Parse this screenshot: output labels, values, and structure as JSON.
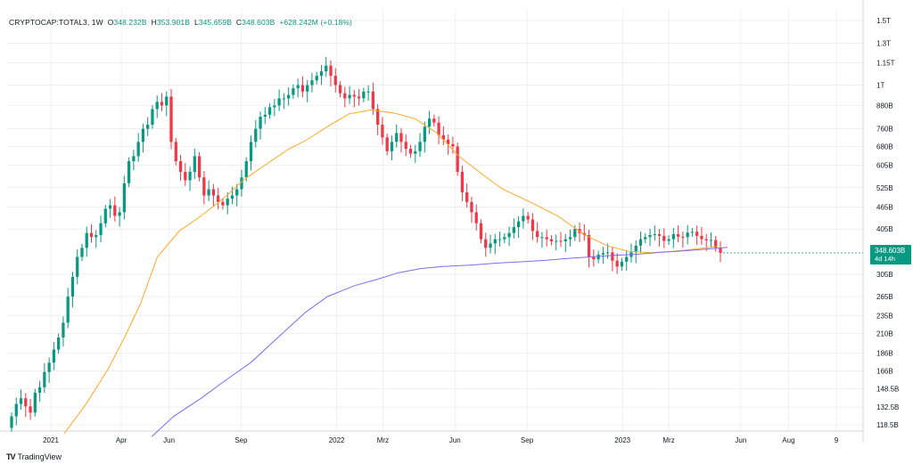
{
  "header": {
    "symbol_label": "CRYPTOCAP:TOTAL3, 1W",
    "open_key": "O",
    "open_value": "348.232B",
    "high_key": "H",
    "high_value": "353.901B",
    "low_key": "L",
    "low_value": "345.659B",
    "close_key": "C",
    "close_value": "348.603B",
    "change_value": "+628.242M (+0.18%)"
  },
  "price_tag": {
    "value": "348.603B",
    "countdown": "4d 14h"
  },
  "branding": {
    "logo": "TV",
    "name": "TradingView"
  },
  "colors": {
    "up": "#089981",
    "down": "#f23645",
    "ma_short": "#ffa726",
    "ma_long": "#7e6bf0",
    "grid": "#e6e6e6",
    "axis_text": "#131722"
  },
  "chart_data": {
    "type": "candlestick",
    "y_scale": "log",
    "y_ticks": [
      "1.5T",
      "1.3T",
      "1.15T",
      "1T",
      "880B",
      "760B",
      "680B",
      "605B",
      "525B",
      "465B",
      "405B",
      "348.603B",
      "305B",
      "265B",
      "235B",
      "210B",
      "186B",
      "166B",
      "148.5B",
      "132.5B",
      "118.5B"
    ],
    "y_tick_values": [
      1500,
      1300,
      1150,
      1000,
      880,
      760,
      680,
      605,
      525,
      465,
      405,
      348.603,
      305,
      265,
      235,
      210,
      186,
      166,
      148.5,
      132.5,
      118.5
    ],
    "x_ticks": [
      {
        "label": "2021",
        "date": "2021-01-01"
      },
      {
        "label": "Apr",
        "date": "2021-04-01"
      },
      {
        "label": "Jun",
        "date": "2021-06-01"
      },
      {
        "label": "Sep",
        "date": "2021-09-01"
      },
      {
        "label": "2022",
        "date": "2022-01-01"
      },
      {
        "label": "Mrz",
        "date": "2022-03-01"
      },
      {
        "label": "Jun",
        "date": "2022-06-01"
      },
      {
        "label": "Sep",
        "date": "2022-09-01"
      },
      {
        "label": "2023",
        "date": "2023-01-01"
      },
      {
        "label": "Mrz",
        "date": "2023-03-01"
      },
      {
        "label": "Jun",
        "date": "2023-06-01"
      },
      {
        "label": "Aug",
        "date": "2023-08-01"
      },
      {
        "label": "9",
        "date": "2023-10-01"
      }
    ],
    "candle_closes": [
      125,
      135,
      140,
      133,
      128,
      145,
      150,
      165,
      175,
      190,
      205,
      225,
      265,
      300,
      340,
      360,
      395,
      385,
      390,
      420,
      460,
      470,
      440,
      450,
      540,
      620,
      640,
      700,
      760,
      780,
      860,
      900,
      880,
      930,
      700,
      620,
      580,
      550,
      580,
      640,
      560,
      500,
      520,
      500,
      480,
      470,
      490,
      500,
      520,
      560,
      620,
      700,
      760,
      820,
      830,
      870,
      880,
      920,
      920,
      940,
      980,
      1000,
      960,
      1000,
      1030,
      1060,
      1090,
      1130,
      1060,
      1000,
      950,
      920,
      940,
      930,
      920,
      960,
      960,
      860,
      780,
      720,
      660,
      700,
      740,
      700,
      670,
      650,
      660,
      700,
      770,
      810,
      790,
      730,
      710,
      690,
      680,
      580,
      510,
      480,
      450,
      420,
      380,
      360,
      370,
      380,
      380,
      385,
      395,
      410,
      425,
      440,
      430,
      400,
      385,
      385,
      380,
      375,
      376,
      375,
      380,
      385,
      405,
      395,
      390,
      340,
      335,
      345,
      348,
      350,
      332,
      320,
      330,
      340,
      350,
      365,
      380,
      385,
      390,
      392,
      388,
      376,
      380,
      392,
      386,
      385,
      396,
      398,
      388,
      380,
      377,
      378,
      360,
      348.603
    ],
    "sma_short": [
      [
        "2021-01-18",
        112
      ],
      [
        "2021-02-15",
        135
      ],
      [
        "2021-03-15",
        168
      ],
      [
        "2021-04-05",
        205
      ],
      [
        "2021-04-26",
        255
      ],
      [
        "2021-05-17",
        340
      ],
      [
        "2021-06-14",
        400
      ],
      [
        "2021-07-12",
        440
      ],
      [
        "2021-08-09",
        490
      ],
      [
        "2021-09-06",
        555
      ],
      [
        "2021-10-04",
        610
      ],
      [
        "2021-11-01",
        670
      ],
      [
        "2021-11-22",
        705
      ],
      [
        "2021-12-20",
        770
      ],
      [
        "2022-01-17",
        835
      ],
      [
        "2022-02-14",
        855
      ],
      [
        "2022-03-14",
        840
      ],
      [
        "2022-04-11",
        810
      ],
      [
        "2022-05-09",
        740
      ],
      [
        "2022-06-06",
        640
      ],
      [
        "2022-07-04",
        575
      ],
      [
        "2022-08-01",
        520
      ],
      [
        "2022-09-05",
        480
      ],
      [
        "2022-10-10",
        440
      ],
      [
        "2022-11-14",
        390
      ],
      [
        "2022-12-12",
        365
      ],
      [
        "2023-01-09",
        352
      ],
      [
        "2023-02-06",
        349
      ],
      [
        "2023-03-06",
        352
      ],
      [
        "2023-04-03",
        357
      ],
      [
        "2023-05-01",
        363
      ]
    ],
    "sma_long": [
      [
        "2021-05-10",
        110
      ],
      [
        "2021-06-07",
        125
      ],
      [
        "2021-07-12",
        140
      ],
      [
        "2021-08-09",
        155
      ],
      [
        "2021-09-13",
        175
      ],
      [
        "2021-10-18",
        205
      ],
      [
        "2021-11-22",
        240
      ],
      [
        "2021-12-20",
        265
      ],
      [
        "2022-01-24",
        284
      ],
      [
        "2022-02-21",
        295
      ],
      [
        "2022-03-21",
        308
      ],
      [
        "2022-04-18",
        316
      ],
      [
        "2022-05-16",
        320
      ],
      [
        "2022-06-20",
        323
      ],
      [
        "2022-07-25",
        327
      ],
      [
        "2022-08-29",
        330
      ],
      [
        "2022-09-26",
        333
      ],
      [
        "2022-10-24",
        337
      ],
      [
        "2022-11-21",
        340
      ],
      [
        "2022-12-19",
        343
      ],
      [
        "2023-01-23",
        346
      ],
      [
        "2023-02-20",
        350
      ],
      [
        "2023-03-27",
        354
      ],
      [
        "2023-05-01",
        359
      ],
      [
        "2023-05-15",
        361
      ]
    ]
  }
}
